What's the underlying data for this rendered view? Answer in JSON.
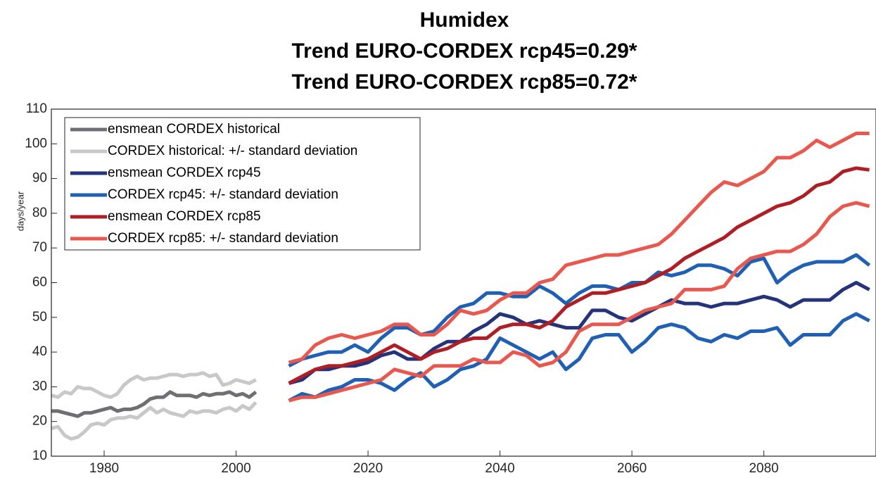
{
  "chart_data": {
    "type": "line",
    "title": [
      "Humidex",
      "Trend EURO-CORDEX rcp45=0.29*",
      "Trend EURO-CORDEX rcp85=0.72*"
    ],
    "ylabel": "days/year",
    "xlim": [
      1972,
      2097
    ],
    "ylim": [
      10,
      110
    ],
    "xticks": [
      1980,
      2000,
      2020,
      2040,
      2060,
      2080
    ],
    "yticks": [
      10,
      20,
      30,
      40,
      50,
      60,
      70,
      80,
      90,
      100,
      110
    ],
    "legend": "upper left",
    "series": [
      {
        "name": "ensmean CORDEX historical",
        "color": "#6e6e73",
        "x": [
          1972,
          1973,
          1974,
          1975,
          1976,
          1977,
          1978,
          1979,
          1980,
          1981,
          1982,
          1983,
          1984,
          1985,
          1986,
          1987,
          1988,
          1989,
          1990,
          1991,
          1992,
          1993,
          1994,
          1995,
          1996,
          1997,
          1998,
          1999,
          2000,
          2001,
          2002,
          2003
        ],
        "values": [
          23,
          23,
          22.5,
          22,
          21.5,
          22.5,
          22.5,
          23,
          23.5,
          24,
          23,
          23.5,
          23.5,
          24,
          25,
          26.5,
          27,
          27,
          28.5,
          27.5,
          27.5,
          27.5,
          27,
          28,
          27.5,
          28,
          28,
          28.5,
          27.5,
          28,
          27,
          28.5
        ]
      },
      {
        "name": "CORDEX historical: +/- standard deviation",
        "color": "#c8c8c8",
        "x": [
          1972,
          1973,
          1974,
          1975,
          1976,
          1977,
          1978,
          1979,
          1980,
          1981,
          1982,
          1983,
          1984,
          1985,
          1986,
          1987,
          1988,
          1989,
          1990,
          1991,
          1992,
          1993,
          1994,
          1995,
          1996,
          1997,
          1998,
          1999,
          2000,
          2001,
          2002,
          2003
        ],
        "upper": [
          27.5,
          27,
          28.5,
          28,
          30,
          29.5,
          29.5,
          28.5,
          27.5,
          27,
          28,
          30.5,
          32,
          33,
          32,
          32.5,
          32.5,
          33,
          33.5,
          33.5,
          33,
          33.5,
          33.5,
          34,
          33,
          33.5,
          30.5,
          31,
          32,
          31.5,
          31,
          32
        ],
        "lower": [
          18,
          18.5,
          16,
          15,
          15.5,
          17,
          19,
          19.5,
          19,
          20.5,
          21,
          21,
          21.5,
          21,
          22.5,
          24,
          22.5,
          23.5,
          22.5,
          22,
          21.5,
          23,
          22.5,
          23,
          23,
          22.5,
          23.5,
          24,
          23,
          24.5,
          23.5,
          25.5
        ]
      },
      {
        "name": "ensmean CORDEX rcp45",
        "color": "#24337a",
        "x": [
          2008,
          2010,
          2012,
          2014,
          2016,
          2018,
          2020,
          2022,
          2024,
          2026,
          2028,
          2030,
          2032,
          2034,
          2036,
          2038,
          2040,
          2042,
          2044,
          2046,
          2048,
          2050,
          2052,
          2054,
          2056,
          2058,
          2060,
          2062,
          2064,
          2066,
          2068,
          2070,
          2072,
          2074,
          2076,
          2078,
          2080,
          2082,
          2084,
          2086,
          2088,
          2090,
          2092,
          2094,
          2096
        ],
        "values": [
          31,
          32,
          35,
          35,
          36,
          36,
          37,
          39,
          40,
          38,
          38,
          41,
          43,
          43,
          46,
          48,
          51,
          50,
          48,
          49,
          48,
          47,
          47,
          52,
          52,
          50,
          49,
          51,
          53,
          55,
          54,
          54,
          53,
          54,
          54,
          55,
          56,
          55,
          53,
          55,
          55,
          55,
          58,
          60,
          58
        ]
      },
      {
        "name": "CORDEX rcp45: +/- standard deviation",
        "color": "#1f5fb4",
        "x": [
          2008,
          2010,
          2012,
          2014,
          2016,
          2018,
          2020,
          2022,
          2024,
          2026,
          2028,
          2030,
          2032,
          2034,
          2036,
          2038,
          2040,
          2042,
          2044,
          2046,
          2048,
          2050,
          2052,
          2054,
          2056,
          2058,
          2060,
          2062,
          2064,
          2066,
          2068,
          2070,
          2072,
          2074,
          2076,
          2078,
          2080,
          2082,
          2084,
          2086,
          2088,
          2090,
          2092,
          2094,
          2096
        ],
        "upper": [
          36,
          38,
          39,
          40,
          40,
          42,
          40,
          44,
          47,
          47,
          45,
          46,
          50,
          53,
          54,
          57,
          57,
          56,
          56,
          59,
          57,
          54,
          57,
          59,
          59,
          58,
          60,
          60,
          63,
          62,
          63,
          65,
          65,
          64,
          62,
          66,
          67,
          60,
          63,
          65,
          66,
          66,
          66,
          68,
          65
        ],
        "lower": [
          26,
          28,
          27,
          29,
          30,
          32,
          32,
          31,
          29,
          32,
          34,
          30,
          32,
          35,
          36,
          38,
          44,
          42,
          40,
          38,
          40,
          35,
          38,
          44,
          45,
          45,
          40,
          43,
          47,
          48,
          47,
          44,
          43,
          45,
          44,
          46,
          46,
          47,
          42,
          45,
          45,
          45,
          49,
          51,
          49
        ]
      },
      {
        "name": "ensmean CORDEX rcp85",
        "color": "#b01e25",
        "x": [
          2008,
          2010,
          2012,
          2014,
          2016,
          2018,
          2020,
          2022,
          2024,
          2026,
          2028,
          2030,
          2032,
          2034,
          2036,
          2038,
          2040,
          2042,
          2044,
          2046,
          2048,
          2050,
          2052,
          2054,
          2056,
          2058,
          2060,
          2062,
          2064,
          2066,
          2068,
          2070,
          2072,
          2074,
          2076,
          2078,
          2080,
          2082,
          2084,
          2086,
          2088,
          2090,
          2092,
          2094,
          2096
        ],
        "values": [
          31,
          33,
          35,
          36,
          36,
          37,
          38,
          40,
          42,
          40,
          38,
          40,
          41,
          43,
          44,
          44,
          47,
          48,
          48,
          47,
          49,
          53,
          55,
          57,
          57,
          58,
          59,
          60,
          62,
          64,
          67,
          69,
          71,
          73,
          76,
          78,
          80,
          82,
          83,
          85,
          88,
          89,
          92,
          93,
          92.5
        ]
      },
      {
        "name": "CORDEX rcp85: +/- standard deviation",
        "color": "#e8584f",
        "x": [
          2008,
          2010,
          2012,
          2014,
          2016,
          2018,
          2020,
          2022,
          2024,
          2026,
          2028,
          2030,
          2032,
          2034,
          2036,
          2038,
          2040,
          2042,
          2044,
          2046,
          2048,
          2050,
          2052,
          2054,
          2056,
          2058,
          2060,
          2062,
          2064,
          2066,
          2068,
          2070,
          2072,
          2074,
          2076,
          2078,
          2080,
          2082,
          2084,
          2086,
          2088,
          2090,
          2092,
          2094,
          2096
        ],
        "upper": [
          37,
          38,
          42,
          44,
          45,
          44,
          45,
          46,
          48,
          48,
          45,
          45,
          48,
          52,
          51,
          52,
          55,
          57,
          57,
          60,
          61,
          65,
          66,
          67,
          68,
          68,
          69,
          70,
          71,
          74,
          78,
          82,
          86,
          89,
          88,
          90,
          92,
          96,
          96,
          98,
          101,
          99,
          101,
          103,
          103
        ],
        "lower": [
          26,
          27,
          27,
          28,
          29,
          30,
          31,
          32,
          35,
          34,
          33,
          36,
          36,
          36,
          38,
          37,
          37,
          40,
          39,
          36,
          37,
          40,
          46,
          48,
          48,
          48,
          50,
          52,
          53,
          54,
          58,
          58,
          58,
          59,
          64,
          67,
          68,
          69,
          69,
          71,
          74,
          79,
          82,
          83,
          82
        ]
      }
    ]
  }
}
